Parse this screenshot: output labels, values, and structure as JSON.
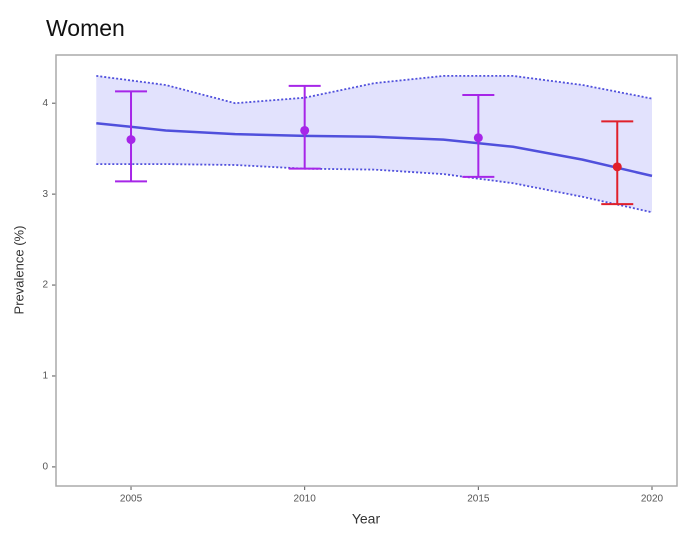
{
  "chart_data": {
    "type": "scatter",
    "title": "Women",
    "xlabel": "Year",
    "ylabel": "Prevalence (%)",
    "xlim": [
      2002.84,
      2020.72
    ],
    "ylim": [
      -0.21,
      4.53
    ],
    "xticks": [
      2005,
      2010,
      2015,
      2020
    ],
    "yticks": [
      0,
      1,
      2,
      3,
      4
    ],
    "grid": false,
    "points": {
      "x": [
        2005,
        2010,
        2015,
        2019
      ],
      "values": [
        3.6,
        3.7,
        3.62,
        3.3
      ],
      "lower": [
        3.14,
        3.28,
        3.19,
        2.89
      ],
      "upper": [
        4.13,
        4.19,
        4.09,
        3.8
      ],
      "colors": [
        "#a626e8",
        "#a626e8",
        "#a626e8",
        "#e0202a"
      ]
    },
    "trend": {
      "x": [
        2004,
        2006,
        2008,
        2010,
        2012,
        2014,
        2016,
        2018,
        2020
      ],
      "values": [
        3.78,
        3.7,
        3.66,
        3.64,
        3.63,
        3.6,
        3.52,
        3.38,
        3.2
      ],
      "upper": [
        4.3,
        4.2,
        4.0,
        4.06,
        4.22,
        4.3,
        4.3,
        4.2,
        4.05
      ],
      "lower": [
        3.33,
        3.33,
        3.32,
        3.28,
        3.27,
        3.22,
        3.12,
        2.97,
        2.8
      ],
      "color": "#5050dc",
      "band_color": "#e2e2fd"
    }
  }
}
